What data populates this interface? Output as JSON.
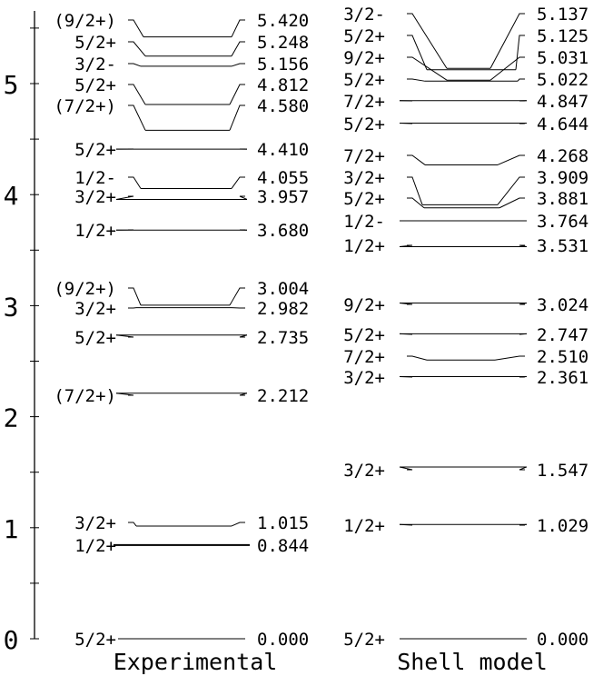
{
  "axis": {
    "tick_labels": [
      "0",
      "1",
      "2",
      "3",
      "4",
      "5"
    ],
    "range": [
      0,
      5.6
    ]
  },
  "columns": [
    {
      "title": "Experimental",
      "levels": [
        {
          "energy": "0.000",
          "spin": "5/2+"
        },
        {
          "energy": "0.844",
          "spin": "1/2+"
        },
        {
          "energy": "1.015",
          "spin": "3/2+"
        },
        {
          "energy": "2.212",
          "spin": "(7/2+)"
        },
        {
          "energy": "2.735",
          "spin": "5/2+"
        },
        {
          "energy": "2.982",
          "spin": "3/2+"
        },
        {
          "energy": "3.004",
          "spin": "(9/2+)"
        },
        {
          "energy": "3.680",
          "spin": "1/2+"
        },
        {
          "energy": "3.957",
          "spin": "3/2+"
        },
        {
          "energy": "4.055",
          "spin": "1/2-"
        },
        {
          "energy": "4.410",
          "spin": "5/2+"
        },
        {
          "energy": "4.580",
          "spin": "(7/2+)"
        },
        {
          "energy": "4.812",
          "spin": "5/2+"
        },
        {
          "energy": "5.156",
          "spin": "3/2-"
        },
        {
          "energy": "5.248",
          "spin": "5/2+"
        },
        {
          "energy": "5.420",
          "spin": "(9/2+)"
        }
      ]
    },
    {
      "title": "Shell model",
      "levels": [
        {
          "energy": "0.000",
          "spin": "5/2+"
        },
        {
          "energy": "1.029",
          "spin": "1/2+"
        },
        {
          "energy": "1.547",
          "spin": "3/2+"
        },
        {
          "energy": "2.361",
          "spin": "3/2+"
        },
        {
          "energy": "2.510",
          "spin": "7/2+"
        },
        {
          "energy": "2.747",
          "spin": "5/2+"
        },
        {
          "energy": "3.024",
          "spin": "9/2+"
        },
        {
          "energy": "3.531",
          "spin": "1/2+"
        },
        {
          "energy": "3.764",
          "spin": "1/2-"
        },
        {
          "energy": "3.881",
          "spin": "5/2+"
        },
        {
          "energy": "3.909",
          "spin": "3/2+"
        },
        {
          "energy": "4.268",
          "spin": "7/2+"
        },
        {
          "energy": "4.644",
          "spin": "5/2+"
        },
        {
          "energy": "4.847",
          "spin": "7/2+"
        },
        {
          "energy": "5.022",
          "spin": "5/2+"
        },
        {
          "energy": "5.031",
          "spin": "9/2+"
        },
        {
          "energy": "5.125",
          "spin": "5/2+"
        },
        {
          "energy": "5.137",
          "spin": "3/2-"
        }
      ]
    }
  ]
}
